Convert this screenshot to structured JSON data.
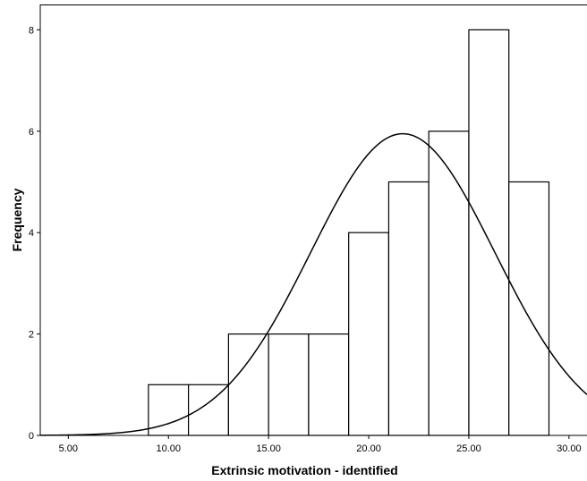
{
  "chart_data": {
    "type": "bar",
    "subtype": "histogram",
    "title": "",
    "xlabel": "Extrinsic motivation - identified",
    "ylabel": "Frequency",
    "xlim": [
      3.6,
      30.9
    ],
    "ylim": [
      0,
      8.5
    ],
    "bins": [
      {
        "start": 9,
        "end": 11,
        "value": 1
      },
      {
        "start": 11,
        "end": 13,
        "value": 1
      },
      {
        "start": 13,
        "end": 15,
        "value": 2
      },
      {
        "start": 15,
        "end": 17,
        "value": 2
      },
      {
        "start": 17,
        "end": 19,
        "value": 2
      },
      {
        "start": 19,
        "end": 21,
        "value": 4
      },
      {
        "start": 21,
        "end": 23,
        "value": 5
      },
      {
        "start": 23,
        "end": 25,
        "value": 6
      },
      {
        "start": 25,
        "end": 27,
        "value": 8
      },
      {
        "start": 27,
        "end": 29,
        "value": 5
      }
    ],
    "x_ticks": [
      5,
      10,
      15,
      20,
      25,
      30
    ],
    "x_tick_labels": [
      "5.00",
      "10.00",
      "15.00",
      "20.00",
      "25.00",
      "30.00"
    ],
    "y_ticks": [
      0,
      2,
      4,
      6,
      8
    ],
    "y_tick_labels": [
      "0",
      "2",
      "4",
      "6",
      "8"
    ],
    "normal_curve": {
      "peak_x": 21.7,
      "peak_y": 5.95,
      "sigma": 4.6
    },
    "grid": false,
    "colors": {
      "bar_fill": "#ffffff",
      "bar_stroke": "#000000",
      "curve": "#000000",
      "background": "#ffffff"
    }
  }
}
